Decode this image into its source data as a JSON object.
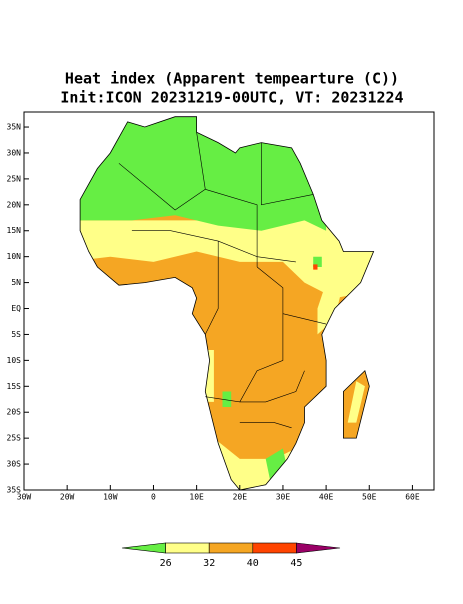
{
  "title": [
    "Heat index (Apparent tempearture (C))",
    "Init:ICON 20231219-00UTC, VT: 20231224"
  ],
  "map": {
    "lonlim": [
      -30,
      65
    ],
    "latlim": [
      -35,
      37.9
    ],
    "lonticks": [
      {
        "value": -30,
        "label": "30W"
      },
      {
        "value": -20,
        "label": "20W"
      },
      {
        "value": -10,
        "label": "10W"
      },
      0,
      {
        "value": 10,
        "label": "10E"
      },
      {
        "value": 20,
        "label": "20E"
      },
      {
        "value": 30,
        "label": "30E"
      },
      {
        "value": 40,
        "label": "40E"
      },
      {
        "value": 50,
        "label": "50E"
      },
      {
        "value": 60,
        "label": "60E"
      }
    ],
    "latticks": [
      {
        "value": 35,
        "label": "35N"
      },
      {
        "value": 30,
        "label": "30N"
      },
      {
        "value": 25,
        "label": "25N"
      },
      {
        "value": 20,
        "label": "20N"
      },
      {
        "value": 15,
        "label": "15N"
      },
      {
        "value": 10,
        "label": "10N"
      },
      {
        "value": 5,
        "label": "5N"
      },
      {
        "value": 0,
        "label": "EQ"
      },
      {
        "value": -5,
        "label": "5S"
      },
      {
        "value": -10,
        "label": "10S"
      },
      {
        "value": -15,
        "label": "15S"
      },
      {
        "value": -20,
        "label": "20S"
      },
      {
        "value": -25,
        "label": "25S"
      },
      {
        "value": -30,
        "label": "30S"
      },
      {
        "value": -35,
        "label": "35S"
      }
    ]
  },
  "colorbar": {
    "levels": [
      26,
      32,
      40,
      45
    ],
    "colors": [
      "#66ee44",
      "#ffff88",
      "#f5a623",
      "#ff4400",
      "#990066"
    ]
  }
}
